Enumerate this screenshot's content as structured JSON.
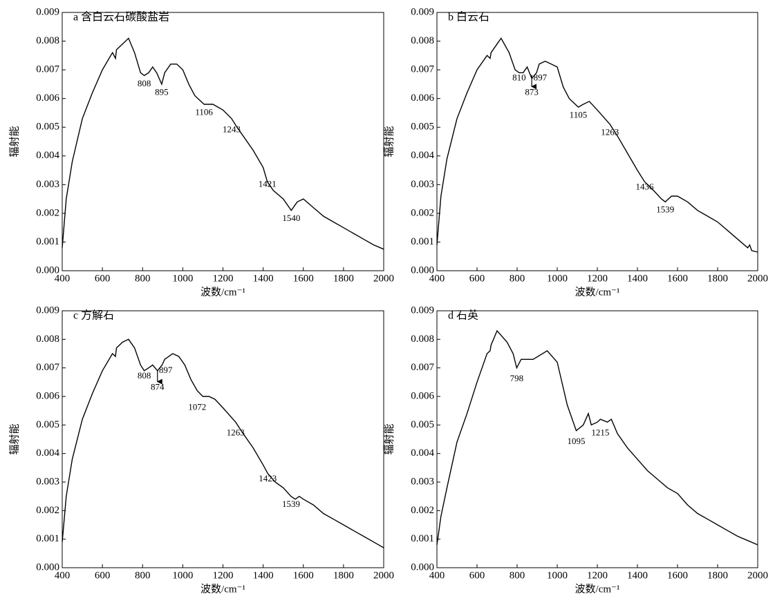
{
  "chart_data": [
    {
      "type": "line",
      "title": "a  含白云石碳酸盐岩",
      "xlabel": "波数/cm⁻¹",
      "ylabel": "辐射能",
      "x": [
        400,
        420,
        450,
        500,
        550,
        600,
        650,
        665,
        670,
        700,
        730,
        760,
        790,
        808,
        830,
        850,
        870,
        895,
        910,
        940,
        970,
        1000,
        1030,
        1060,
        1106,
        1150,
        1200,
        1243,
        1270,
        1300,
        1350,
        1400,
        1421,
        1450,
        1500,
        1540,
        1570,
        1600,
        1650,
        1700,
        1750,
        1800,
        1850,
        1900,
        1950,
        2000
      ],
      "series": [
        {
          "color": "#000000",
          "values": [
            0.0008,
            0.0025,
            0.0038,
            0.0053,
            0.0062,
            0.007,
            0.0076,
            0.0074,
            0.0077,
            0.0079,
            0.0081,
            0.0076,
            0.0069,
            0.0068,
            0.0069,
            0.0071,
            0.0069,
            0.0065,
            0.0069,
            0.0072,
            0.0072,
            0.007,
            0.0065,
            0.0061,
            0.0058,
            0.0058,
            0.0056,
            0.0053,
            0.005,
            0.0047,
            0.0042,
            0.0036,
            0.0031,
            0.0028,
            0.0025,
            0.0021,
            0.0024,
            0.0025,
            0.0022,
            0.0019,
            0.0017,
            0.0015,
            0.0013,
            0.0011,
            0.0009,
            0.00075
          ]
        }
      ],
      "xlim": [
        400,
        2000
      ],
      "ylim": [
        0,
        0.009
      ],
      "xticks": [
        400,
        600,
        800,
        1000,
        1200,
        1400,
        1600,
        1800,
        2000
      ],
      "yticks": [
        {
          "value": 0,
          "label": "0.000"
        },
        0.001,
        0.002,
        0.003,
        0.004,
        0.005,
        0.006,
        0.007,
        0.008,
        0.009
      ],
      "annotations": [
        {
          "text": "808",
          "x": 808,
          "y": 0.0065
        },
        {
          "text": "895",
          "x": 895,
          "y": 0.0062
        },
        {
          "text": "1106",
          "x": 1106,
          "y": 0.0055
        },
        {
          "text": "1243",
          "x": 1243,
          "y": 0.0049
        },
        {
          "text": "1421",
          "x": 1421,
          "y": 0.003
        },
        {
          "text": "1540",
          "x": 1540,
          "y": 0.0018
        }
      ]
    },
    {
      "type": "line",
      "title": "b  白云石",
      "xlabel": "波数/cm⁻¹",
      "ylabel": "辐射能",
      "x": [
        400,
        420,
        450,
        500,
        550,
        600,
        650,
        665,
        670,
        700,
        720,
        760,
        790,
        810,
        830,
        850,
        873,
        897,
        910,
        940,
        970,
        1000,
        1030,
        1060,
        1105,
        1130,
        1160,
        1200,
        1263,
        1300,
        1350,
        1400,
        1436,
        1480,
        1520,
        1539,
        1570,
        1600,
        1650,
        1700,
        1750,
        1800,
        1850,
        1900,
        1950,
        1960,
        1970,
        2000
      ],
      "series": [
        {
          "color": "#000000",
          "values": [
            0.0009,
            0.0026,
            0.0039,
            0.0053,
            0.0062,
            0.007,
            0.0075,
            0.0074,
            0.0076,
            0.0079,
            0.0081,
            0.0076,
            0.007,
            0.0069,
            0.0069,
            0.0071,
            0.0067,
            0.0069,
            0.0072,
            0.0073,
            0.0072,
            0.0071,
            0.0064,
            0.006,
            0.0057,
            0.0058,
            0.0059,
            0.0056,
            0.0051,
            0.0047,
            0.0041,
            0.0035,
            0.0031,
            0.0028,
            0.0025,
            0.0024,
            0.0026,
            0.0026,
            0.0024,
            0.0021,
            0.0019,
            0.0017,
            0.0014,
            0.0011,
            0.0008,
            0.0009,
            0.0007,
            0.00065
          ]
        }
      ],
      "xlim": [
        400,
        2000
      ],
      "ylim": [
        0,
        0.009
      ],
      "xticks": [
        400,
        600,
        800,
        1000,
        1200,
        1400,
        1600,
        1800,
        2000
      ],
      "yticks": [
        {
          "value": 0,
          "label": "0.000"
        },
        0.001,
        0.002,
        0.003,
        0.004,
        0.005,
        0.006,
        0.007,
        0.008,
        0.009
      ],
      "annotations": [
        {
          "text": "810",
          "x": 810,
          "y": 0.0067
        },
        {
          "text": "897",
          "x": 915,
          "y": 0.0067
        },
        {
          "text": "873",
          "x": 873,
          "y": 0.0062,
          "arrow": true
        },
        {
          "text": "1105",
          "x": 1105,
          "y": 0.0054
        },
        {
          "text": "1263",
          "x": 1263,
          "y": 0.0048
        },
        {
          "text": "1436",
          "x": 1436,
          "y": 0.0029
        },
        {
          "text": "1539",
          "x": 1539,
          "y": 0.0021
        }
      ]
    },
    {
      "type": "line",
      "title": "c  方解石",
      "xlabel": "波数/cm⁻¹",
      "ylabel": "辐射能",
      "x": [
        400,
        420,
        450,
        500,
        550,
        600,
        650,
        665,
        670,
        700,
        730,
        760,
        790,
        808,
        830,
        850,
        874,
        897,
        910,
        950,
        980,
        1010,
        1040,
        1072,
        1100,
        1130,
        1160,
        1200,
        1263,
        1300,
        1350,
        1400,
        1423,
        1460,
        1500,
        1539,
        1560,
        1580,
        1600,
        1650,
        1700,
        1750,
        1800,
        1850,
        1900,
        1950,
        2000
      ],
      "series": [
        {
          "color": "#000000",
          "values": [
            0.0009,
            0.0025,
            0.0038,
            0.0052,
            0.0061,
            0.0069,
            0.0075,
            0.0074,
            0.0077,
            0.0079,
            0.008,
            0.0077,
            0.0071,
            0.0069,
            0.007,
            0.0071,
            0.0069,
            0.0071,
            0.0073,
            0.0075,
            0.0074,
            0.0071,
            0.0066,
            0.0062,
            0.006,
            0.006,
            0.0059,
            0.0056,
            0.0051,
            0.0047,
            0.0042,
            0.0036,
            0.0033,
            0.003,
            0.0028,
            0.0025,
            0.0024,
            0.0025,
            0.0024,
            0.0022,
            0.0019,
            0.0017,
            0.0015,
            0.0013,
            0.0011,
            0.0009,
            0.0007
          ]
        }
      ],
      "xlim": [
        400,
        2000
      ],
      "ylim": [
        0,
        0.009
      ],
      "xticks": [
        400,
        600,
        800,
        1000,
        1200,
        1400,
        1600,
        1800,
        2000
      ],
      "yticks": [
        {
          "value": 0,
          "label": "0.000"
        },
        0.001,
        0.002,
        0.003,
        0.004,
        0.005,
        0.006,
        0.007,
        0.008,
        0.009
      ],
      "annotations": [
        {
          "text": "808",
          "x": 808,
          "y": 0.0067
        },
        {
          "text": "897",
          "x": 915,
          "y": 0.0069
        },
        {
          "text": "874",
          "x": 874,
          "y": 0.0063,
          "arrow": true
        },
        {
          "text": "1072",
          "x": 1072,
          "y": 0.0056
        },
        {
          "text": "1263",
          "x": 1263,
          "y": 0.0047
        },
        {
          "text": "1423",
          "x": 1423,
          "y": 0.0031
        },
        {
          "text": "1539",
          "x": 1539,
          "y": 0.0022
        }
      ]
    },
    {
      "type": "line",
      "title": "d  石英",
      "xlabel": "波数/cm⁻¹",
      "ylabel": "辐射能",
      "x": [
        400,
        420,
        450,
        500,
        550,
        600,
        650,
        665,
        670,
        700,
        750,
        780,
        798,
        820,
        880,
        950,
        1000,
        1050,
        1095,
        1130,
        1155,
        1170,
        1200,
        1215,
        1250,
        1270,
        1300,
        1350,
        1400,
        1450,
        1500,
        1550,
        1600,
        1650,
        1700,
        1750,
        1800,
        1850,
        1900,
        1950,
        2000
      ],
      "series": [
        {
          "color": "#000000",
          "values": [
            0.0008,
            0.0018,
            0.0028,
            0.0044,
            0.0054,
            0.0065,
            0.0075,
            0.0076,
            0.0078,
            0.0083,
            0.0079,
            0.0075,
            0.007,
            0.0073,
            0.0073,
            0.0076,
            0.0072,
            0.0057,
            0.0048,
            0.005,
            0.0054,
            0.005,
            0.0051,
            0.0052,
            0.0051,
            0.0052,
            0.0047,
            0.0042,
            0.0038,
            0.0034,
            0.0031,
            0.0028,
            0.0026,
            0.0022,
            0.0019,
            0.0017,
            0.0015,
            0.0013,
            0.0011,
            0.00095,
            0.0008
          ]
        }
      ],
      "xlim": [
        400,
        2000
      ],
      "ylim": [
        0,
        0.009
      ],
      "xticks": [
        400,
        600,
        800,
        1000,
        1200,
        1400,
        1600,
        1800,
        2000
      ],
      "yticks": [
        {
          "value": 0,
          "label": "0.000"
        },
        0.001,
        0.002,
        0.003,
        0.004,
        0.005,
        0.006,
        0.007,
        0.008,
        0.009
      ],
      "annotations": [
        {
          "text": "798",
          "x": 798,
          "y": 0.0066
        },
        {
          "text": "1095",
          "x": 1095,
          "y": 0.0044
        },
        {
          "text": "1215",
          "x": 1215,
          "y": 0.0047
        }
      ]
    }
  ]
}
